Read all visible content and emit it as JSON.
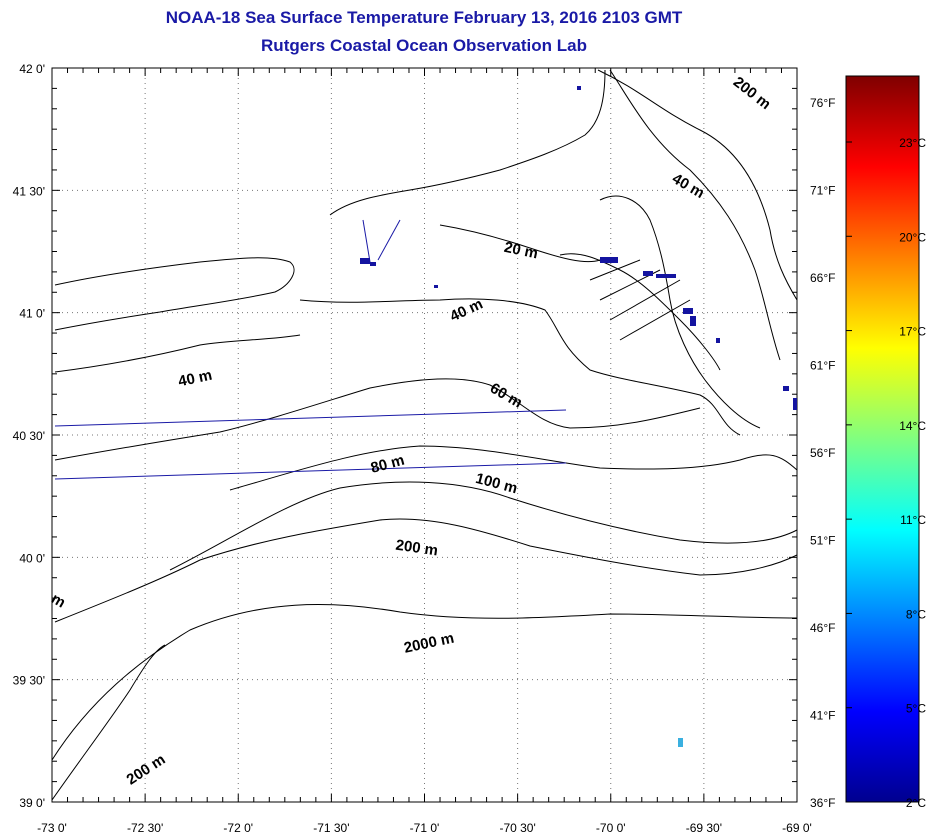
{
  "titles": {
    "line1": "NOAA-18 Sea Surface Temperature February 13, 2016 2103 GMT",
    "line2": "Rutgers Coastal Ocean Observation Lab"
  },
  "axes": {
    "lat_labels": [
      "42 0'",
      "41 30'",
      "41 0'",
      "40 30'",
      "40 0'",
      "39 30'",
      "39 0'"
    ],
    "lon_labels": [
      "-73 0'",
      "-72 30'",
      "-72 0'",
      "-71 30'",
      "-71 0'",
      "-70 30'",
      "-70 0'",
      "-69 30'",
      "-69 0'"
    ],
    "fahrenheit_labels": [
      "76°F",
      "71°F",
      "66°F",
      "61°F",
      "56°F",
      "51°F",
      "46°F",
      "41°F",
      "36°F"
    ]
  },
  "colorbar": {
    "celsius_labels": [
      "23°C",
      "20°C",
      "17°C",
      "14°C",
      "11°C",
      "8°C",
      "5°C",
      "2°C"
    ],
    "colors": [
      "#7f0000",
      "#ff0000",
      "#ff8000",
      "#ffff00",
      "#80ff80",
      "#00ffff",
      "#0080ff",
      "#0000ff",
      "#00008f"
    ]
  },
  "depth_labels": [
    "200 m",
    "40 m",
    "20 m",
    "40 m",
    "40 m",
    "60 m",
    "80 m",
    "100 m",
    "200 m",
    "2000 m",
    "200 m",
    "m"
  ],
  "colors": {
    "title": "#1a1aa6",
    "land_outline": "#000000",
    "track_line": "#1a1aa6",
    "sst_pixel": "#1414a0"
  }
}
